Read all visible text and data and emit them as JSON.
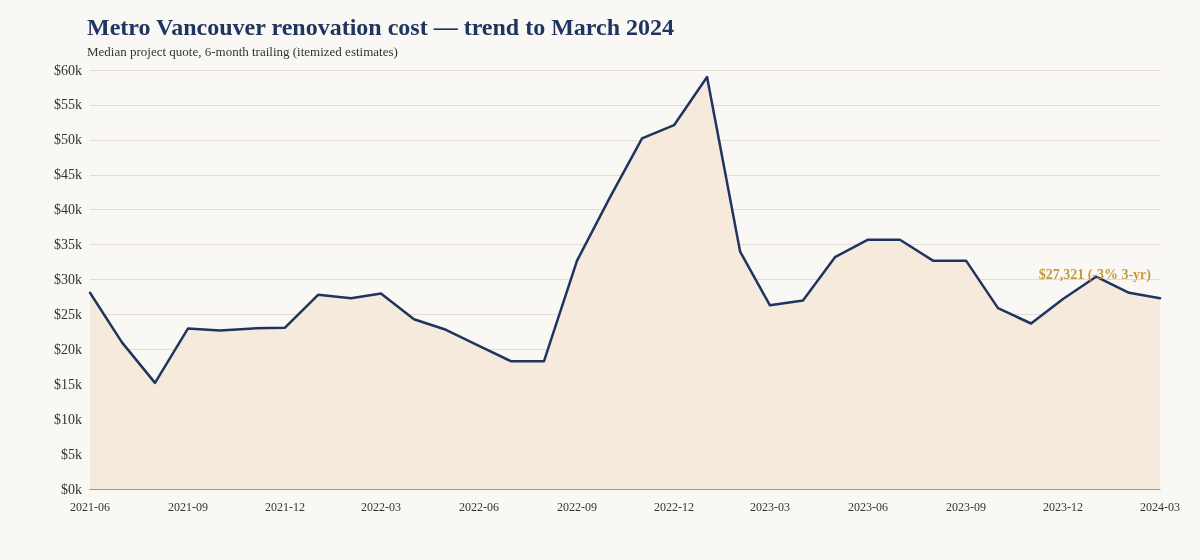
{
  "chart_data": {
    "type": "area",
    "title": "Metro Vancouver renovation cost — trend to March 2024",
    "subtitle": "Median project quote, 6-month trailing (itemized estimates)",
    "x": [
      "2021-06",
      "2021-07",
      "2021-08",
      "2021-09",
      "2021-10",
      "2021-11",
      "2021-12",
      "2022-01",
      "2022-02",
      "2022-03",
      "2022-04",
      "2022-05",
      "2022-06",
      "2022-07",
      "2022-08",
      "2022-09",
      "2022-10",
      "2022-11",
      "2022-12",
      "2023-01",
      "2023-02",
      "2023-03",
      "2023-04",
      "2023-05",
      "2023-06",
      "2023-07",
      "2023-08",
      "2023-09",
      "2023-10",
      "2023-11",
      "2023-12",
      "2024-01",
      "2024-02",
      "2024-03"
    ],
    "series": [
      {
        "color": "#1f3560",
        "values": [
          28100,
          21000,
          15200,
          23000,
          22700,
          23000,
          23100,
          27800,
          27300,
          28000,
          24300,
          22800,
          20500,
          18300,
          18300,
          32700,
          41500,
          50200,
          52100,
          59000,
          34000,
          26300,
          27000,
          33200,
          35700,
          35700,
          32700,
          32700,
          25900,
          23700,
          27200,
          30400,
          28100,
          27321
        ]
      }
    ],
    "annotations": [
      {
        "text": "$27,321 (-3% 3-yr)",
        "x": "2024-03",
        "y": 27321
      }
    ],
    "xlim": [
      "2021-06",
      "2024-03"
    ],
    "xticks": [
      "2021-06",
      "2021-09",
      "2021-12",
      "2022-03",
      "2022-06",
      "2022-09",
      "2022-12",
      "2023-03",
      "2023-06",
      "2023-09",
      "2023-12",
      "2024-03"
    ],
    "ylim": [
      0,
      60000
    ],
    "yticks": [
      {
        "value": 0,
        "label": "$0k"
      },
      {
        "value": 5000,
        "label": "$5k"
      },
      {
        "value": 10000,
        "label": "$10k"
      },
      {
        "value": 15000,
        "label": "$15k"
      },
      {
        "value": 20000,
        "label": "$20k"
      },
      {
        "value": 25000,
        "label": "$25k"
      },
      {
        "value": 30000,
        "label": "$30k"
      },
      {
        "value": 35000,
        "label": "$35k"
      },
      {
        "value": 40000,
        "label": "$40k"
      },
      {
        "value": 45000,
        "label": "$45k"
      },
      {
        "value": 50000,
        "label": "$50k"
      },
      {
        "value": 55000,
        "label": "$55k"
      },
      {
        "value": 60000,
        "label": "$60k"
      }
    ],
    "grid": "y",
    "marker": "none",
    "line_style": "solid"
  }
}
